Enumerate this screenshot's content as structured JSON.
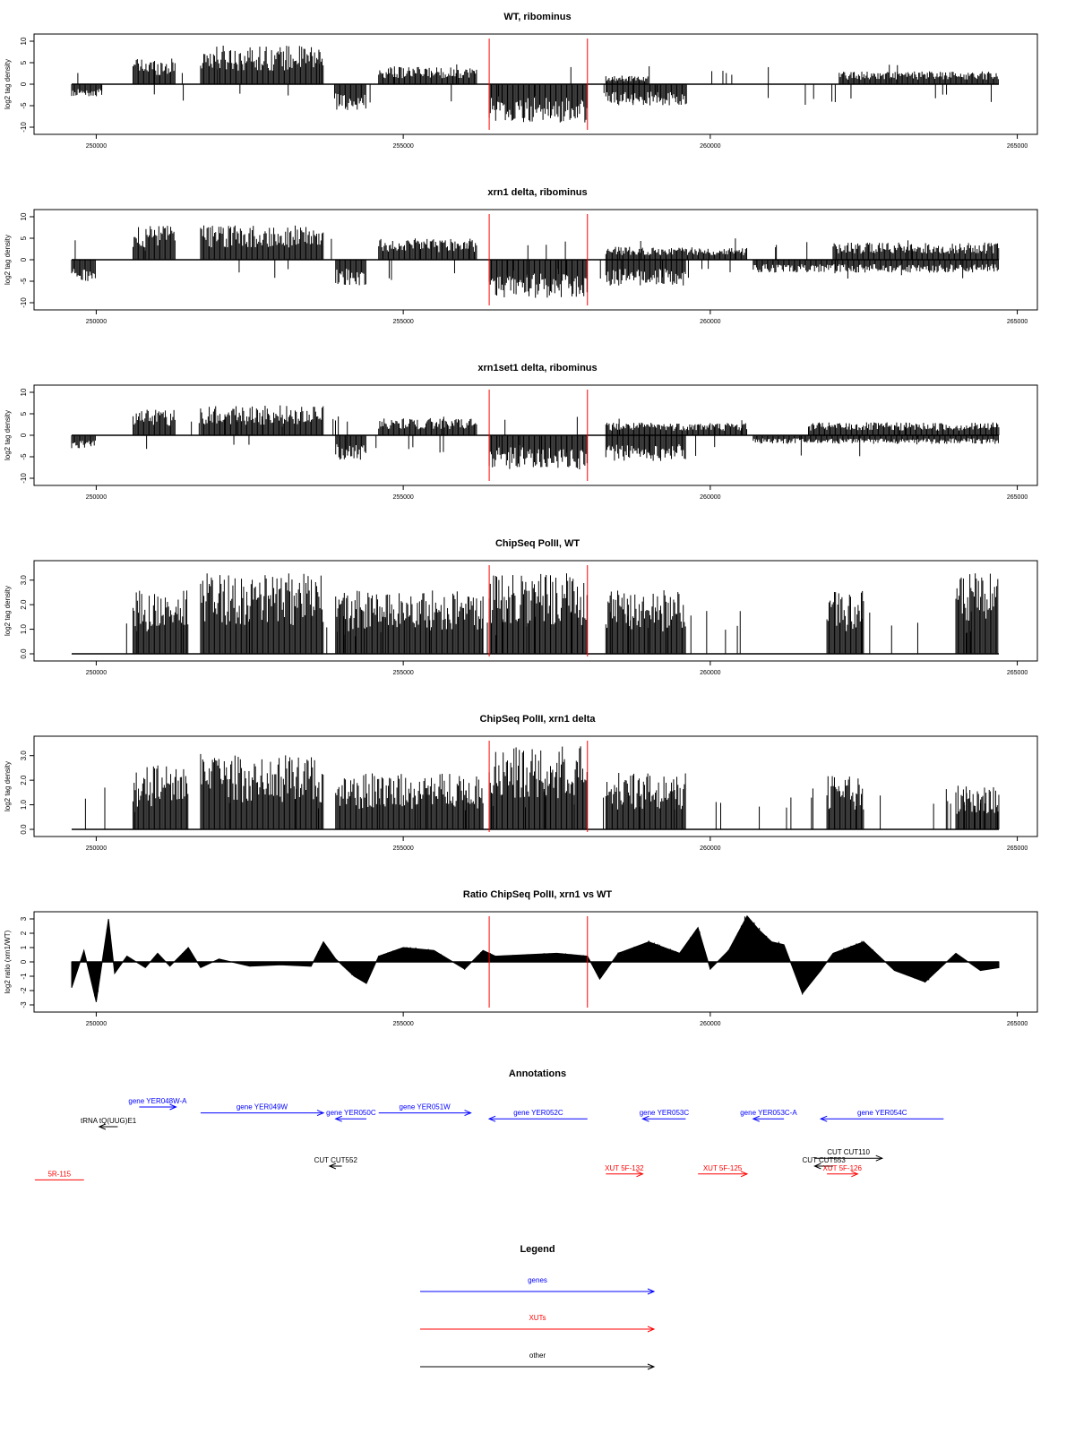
{
  "chart_data": [
    {
      "type": "bar",
      "title": "WT, ribominus",
      "ylabel": "log2 tag density",
      "ylim": [
        -10,
        10
      ],
      "yticks": [
        10,
        5,
        0,
        -5,
        -10
      ],
      "xticks": [
        250000,
        255000,
        260000,
        265000
      ],
      "xlim": [
        249600,
        264700
      ],
      "markers": [
        256400,
        258000
      ],
      "segments": [
        {
          "x": [
            249600,
            250100
          ],
          "sign": -1,
          "amp": 3
        },
        {
          "x": [
            250600,
            251300
          ],
          "sign": 1,
          "amp": 6
        },
        {
          "x": [
            251700,
            253700
          ],
          "sign": 1,
          "amp": 9
        },
        {
          "x": [
            253900,
            254400
          ],
          "sign": -1,
          "amp": 6
        },
        {
          "x": [
            254600,
            256200
          ],
          "sign": 1,
          "amp": 4
        },
        {
          "x": [
            256400,
            258000
          ],
          "sign": -1,
          "amp": 9
        },
        {
          "x": [
            258300,
            259600
          ],
          "sign": -1,
          "amp": 5
        },
        {
          "x": [
            258300,
            259000
          ],
          "sign": 1,
          "amp": 2
        },
        {
          "x": [
            262100,
            264700
          ],
          "sign": 1,
          "amp": 3
        }
      ]
    },
    {
      "type": "bar",
      "title": "xrn1 delta, ribominus",
      "ylabel": "log2 tag density",
      "ylim": [
        -10,
        10
      ],
      "yticks": [
        10,
        5,
        0,
        -5,
        -10
      ],
      "xticks": [
        250000,
        255000,
        260000,
        265000
      ],
      "xlim": [
        249600,
        264700
      ],
      "markers": [
        256400,
        258000
      ],
      "segments": [
        {
          "x": [
            249600,
            250000
          ],
          "sign": -1,
          "amp": 5
        },
        {
          "x": [
            250600,
            251300
          ],
          "sign": 1,
          "amp": 8
        },
        {
          "x": [
            251700,
            253700
          ],
          "sign": 1,
          "amp": 8
        },
        {
          "x": [
            253900,
            254400
          ],
          "sign": -1,
          "amp": 6
        },
        {
          "x": [
            254600,
            256200
          ],
          "sign": 1,
          "amp": 5
        },
        {
          "x": [
            256400,
            258000
          ],
          "sign": -1,
          "amp": 9
        },
        {
          "x": [
            258300,
            259600
          ],
          "sign": -1,
          "amp": 6
        },
        {
          "x": [
            258300,
            260600
          ],
          "sign": 1,
          "amp": 3
        },
        {
          "x": [
            260700,
            264700
          ],
          "sign": -1,
          "amp": 3
        },
        {
          "x": [
            262000,
            264700
          ],
          "sign": 1,
          "amp": 4
        }
      ]
    },
    {
      "type": "bar",
      "title": "xrn1set1 delta, ribominus",
      "ylabel": "log2 tag density",
      "ylim": [
        -10,
        10
      ],
      "yticks": [
        10,
        5,
        0,
        -5,
        -10
      ],
      "xticks": [
        250000,
        255000,
        260000,
        265000
      ],
      "xlim": [
        249600,
        264700
      ],
      "markers": [
        256400,
        258000
      ],
      "segments": [
        {
          "x": [
            249600,
            250000
          ],
          "sign": -1,
          "amp": 3
        },
        {
          "x": [
            250600,
            251300
          ],
          "sign": 1,
          "amp": 6
        },
        {
          "x": [
            251700,
            253700
          ],
          "sign": 1,
          "amp": 7
        },
        {
          "x": [
            253900,
            254400
          ],
          "sign": -1,
          "amp": 6
        },
        {
          "x": [
            254600,
            256200
          ],
          "sign": 1,
          "amp": 4
        },
        {
          "x": [
            256400,
            258000
          ],
          "sign": -1,
          "amp": 8
        },
        {
          "x": [
            258300,
            259600
          ],
          "sign": -1,
          "amp": 6
        },
        {
          "x": [
            258300,
            260600
          ],
          "sign": 1,
          "amp": 3
        },
        {
          "x": [
            260700,
            264700
          ],
          "sign": -1,
          "amp": 2
        },
        {
          "x": [
            261600,
            264700
          ],
          "sign": 1,
          "amp": 3
        }
      ]
    },
    {
      "type": "bar",
      "title": "ChipSeq PolII, WT",
      "ylabel": "log2 tag density",
      "ylim": [
        0,
        3.5
      ],
      "yticks": [
        0.0,
        1.0,
        2.0,
        3.0
      ],
      "xticks": [
        250000,
        255000,
        260000,
        265000
      ],
      "xlim": [
        249600,
        264700
      ],
      "markers": [
        256400,
        258000
      ],
      "segments": [
        {
          "x": [
            250600,
            251500
          ],
          "sign": 1,
          "amp": 2.6
        },
        {
          "x": [
            251700,
            253700
          ],
          "sign": 1,
          "amp": 3.3
        },
        {
          "x": [
            253900,
            256300
          ],
          "sign": 1,
          "amp": 2.6
        },
        {
          "x": [
            256400,
            258000
          ],
          "sign": 1,
          "amp": 3.3
        },
        {
          "x": [
            258300,
            259600
          ],
          "sign": 1,
          "amp": 2.6
        },
        {
          "x": [
            261900,
            262500
          ],
          "sign": 1,
          "amp": 2.6
        },
        {
          "x": [
            264000,
            264700
          ],
          "sign": 1,
          "amp": 3.3
        }
      ]
    },
    {
      "type": "bar",
      "title": "ChipSeq PolII, xrn1 delta",
      "ylabel": "log2 tag density",
      "ylim": [
        0,
        3.5
      ],
      "yticks": [
        0.0,
        1.0,
        2.0,
        3.0
      ],
      "xticks": [
        250000,
        255000,
        260000,
        265000
      ],
      "xlim": [
        249600,
        264700
      ],
      "markers": [
        256400,
        258000
      ],
      "segments": [
        {
          "x": [
            250600,
            251500
          ],
          "sign": 1,
          "amp": 2.6
        },
        {
          "x": [
            251700,
            253700
          ],
          "sign": 1,
          "amp": 3.1
        },
        {
          "x": [
            253900,
            256300
          ],
          "sign": 1,
          "amp": 2.3
        },
        {
          "x": [
            256400,
            258000
          ],
          "sign": 1,
          "amp": 3.4
        },
        {
          "x": [
            258300,
            259600
          ],
          "sign": 1,
          "amp": 2.3
        },
        {
          "x": [
            261900,
            262500
          ],
          "sign": 1,
          "amp": 2.2
        },
        {
          "x": [
            264000,
            264700
          ],
          "sign": 1,
          "amp": 1.8
        }
      ]
    },
    {
      "type": "area",
      "title": "Ratio ChipSeq PolII, xrn1 vs WT",
      "ylabel": "log2 ratio (xrn1/WT)",
      "ylim": [
        -3,
        3
      ],
      "yticks": [
        3,
        2,
        1,
        0,
        -1,
        -2,
        -3
      ],
      "xticks": [
        250000,
        255000,
        260000,
        265000
      ],
      "xlim": [
        249600,
        264700
      ],
      "markers": [
        256400,
        258000
      ],
      "x": [
        249600,
        249800,
        250000,
        250200,
        250300,
        250500,
        250800,
        251000,
        251200,
        251500,
        251700,
        252000,
        252500,
        253000,
        253500,
        253700,
        253900,
        254200,
        254400,
        254600,
        255000,
        255500,
        256000,
        256300,
        256500,
        257000,
        257500,
        258000,
        258200,
        258500,
        259000,
        259500,
        259800,
        260000,
        260300,
        260600,
        260800,
        261000,
        261200,
        261500,
        261800,
        262000,
        262500,
        263000,
        263500,
        264000,
        264400,
        264700
      ],
      "values": [
        -1.8,
        0.8,
        -2.8,
        3.0,
        -0.8,
        0.4,
        -0.4,
        0.6,
        -0.3,
        1.0,
        -0.4,
        0.2,
        -0.3,
        -0.2,
        -0.3,
        1.4,
        0.2,
        -1.0,
        -1.5,
        0.4,
        1.0,
        0.8,
        -0.5,
        0.8,
        0.4,
        0.5,
        0.6,
        0.4,
        -1.2,
        0.6,
        1.4,
        0.6,
        2.4,
        -0.5,
        0.8,
        3.2,
        2.2,
        1.4,
        1.2,
        -2.2,
        -0.6,
        0.6,
        1.4,
        -0.6,
        -1.4,
        0.6,
        -0.6,
        -0.4
      ]
    }
  ],
  "annotations": {
    "title": "Annotations",
    "features": [
      {
        "label": "gene YER048W-A",
        "color": "#0000ff",
        "row": 0,
        "x0": 250700,
        "x1": 251300,
        "dir": "right"
      },
      {
        "label": "tRNA tQ(UUG)E1",
        "color": "#000000",
        "row": 1,
        "x0": 250050,
        "x1": 250350,
        "dir": "left"
      },
      {
        "label": "gene YER049W",
        "color": "#0000ff",
        "row": 0.3,
        "x0": 251700,
        "x1": 253700,
        "dir": "right"
      },
      {
        "label": "gene YER050C",
        "color": "#0000ff",
        "row": 0.6,
        "x0": 253900,
        "x1": 254400,
        "dir": "left"
      },
      {
        "label": "gene YER051W",
        "color": "#0000ff",
        "row": 0.3,
        "x0": 254600,
        "x1": 256100,
        "dir": "right"
      },
      {
        "label": "gene YER052C",
        "color": "#0000ff",
        "row": 0.6,
        "x0": 256400,
        "x1": 258000,
        "dir": "left"
      },
      {
        "label": "gene YER053C",
        "color": "#0000ff",
        "row": 0.6,
        "x0": 258900,
        "x1": 259600,
        "dir": "left"
      },
      {
        "label": "gene YER053C-A",
        "color": "#0000ff",
        "row": 0.6,
        "x0": 260700,
        "x1": 261200,
        "dir": "left"
      },
      {
        "label": "gene YER054C",
        "color": "#0000ff",
        "row": 0.6,
        "x0": 261800,
        "x1": 263800,
        "dir": "left"
      },
      {
        "label": "CUT CUT552",
        "color": "#000000",
        "row": 3,
        "x0": 253800,
        "x1": 254000,
        "dir": "left"
      },
      {
        "label": "CUT CUT110",
        "color": "#000000",
        "row": 2.6,
        "x0": 261700,
        "x1": 262800,
        "dir": "right"
      },
      {
        "label": "CUT CUT553",
        "color": "#000000",
        "row": 3,
        "x0": 261700,
        "x1": 262000,
        "dir": "left"
      },
      {
        "label": "5R-115",
        "color": "#ff0000",
        "row": 3.7,
        "x0": 249000,
        "x1": 249800,
        "dir": "none"
      },
      {
        "label": "XUT 5F-132",
        "color": "#ff0000",
        "row": 3.4,
        "x0": 258300,
        "x1": 258900,
        "dir": "right"
      },
      {
        "label": "XUT 5F-125",
        "color": "#ff0000",
        "row": 3.4,
        "x0": 259800,
        "x1": 260600,
        "dir": "right"
      },
      {
        "label": "XUT 5F-126",
        "color": "#ff0000",
        "row": 3.4,
        "x0": 261900,
        "x1": 262400,
        "dir": "right"
      }
    ]
  },
  "legend": {
    "title": "Legend",
    "items": [
      {
        "label": "genes",
        "color": "#0000ff"
      },
      {
        "label": "XUTs",
        "color": "#ff0000"
      },
      {
        "label": "other",
        "color": "#000000"
      }
    ]
  }
}
